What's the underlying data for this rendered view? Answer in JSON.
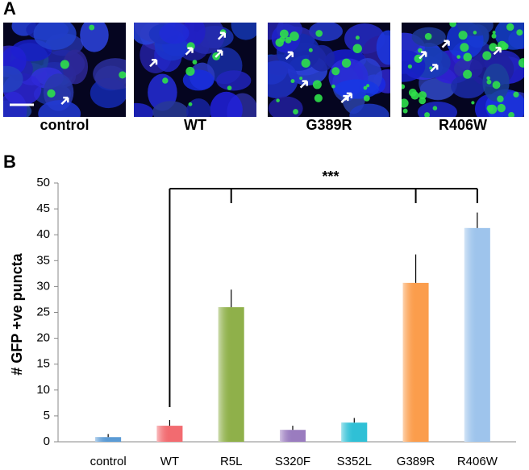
{
  "panel_a": {
    "label": "A",
    "images": [
      "control",
      "WT",
      "G389R",
      "R406W"
    ]
  },
  "chart_data": {
    "type": "bar",
    "panel_label": "B",
    "ylabel": "# GFP +ve puncta",
    "categories": [
      "control",
      "WT",
      "R5L",
      "S320F",
      "S352L",
      "G389R",
      "R406W"
    ],
    "values": [
      0.9,
      3.1,
      26,
      2.3,
      3.7,
      30.7,
      41.3
    ],
    "errors": [
      0.6,
      1.1,
      3.4,
      0.8,
      0.9,
      5.5,
      3.0
    ],
    "colors": [
      "#5b9bd5",
      "#f26b70",
      "#8fb04a",
      "#9a7cbf",
      "#2fc0d6",
      "#fb9d4c",
      "#9ec4ec"
    ],
    "error_color": "#000000",
    "ylim": [
      0,
      50
    ],
    "yticks": [
      0,
      5,
      10,
      15,
      20,
      25,
      30,
      35,
      40,
      45,
      50
    ],
    "annotation": "***"
  }
}
